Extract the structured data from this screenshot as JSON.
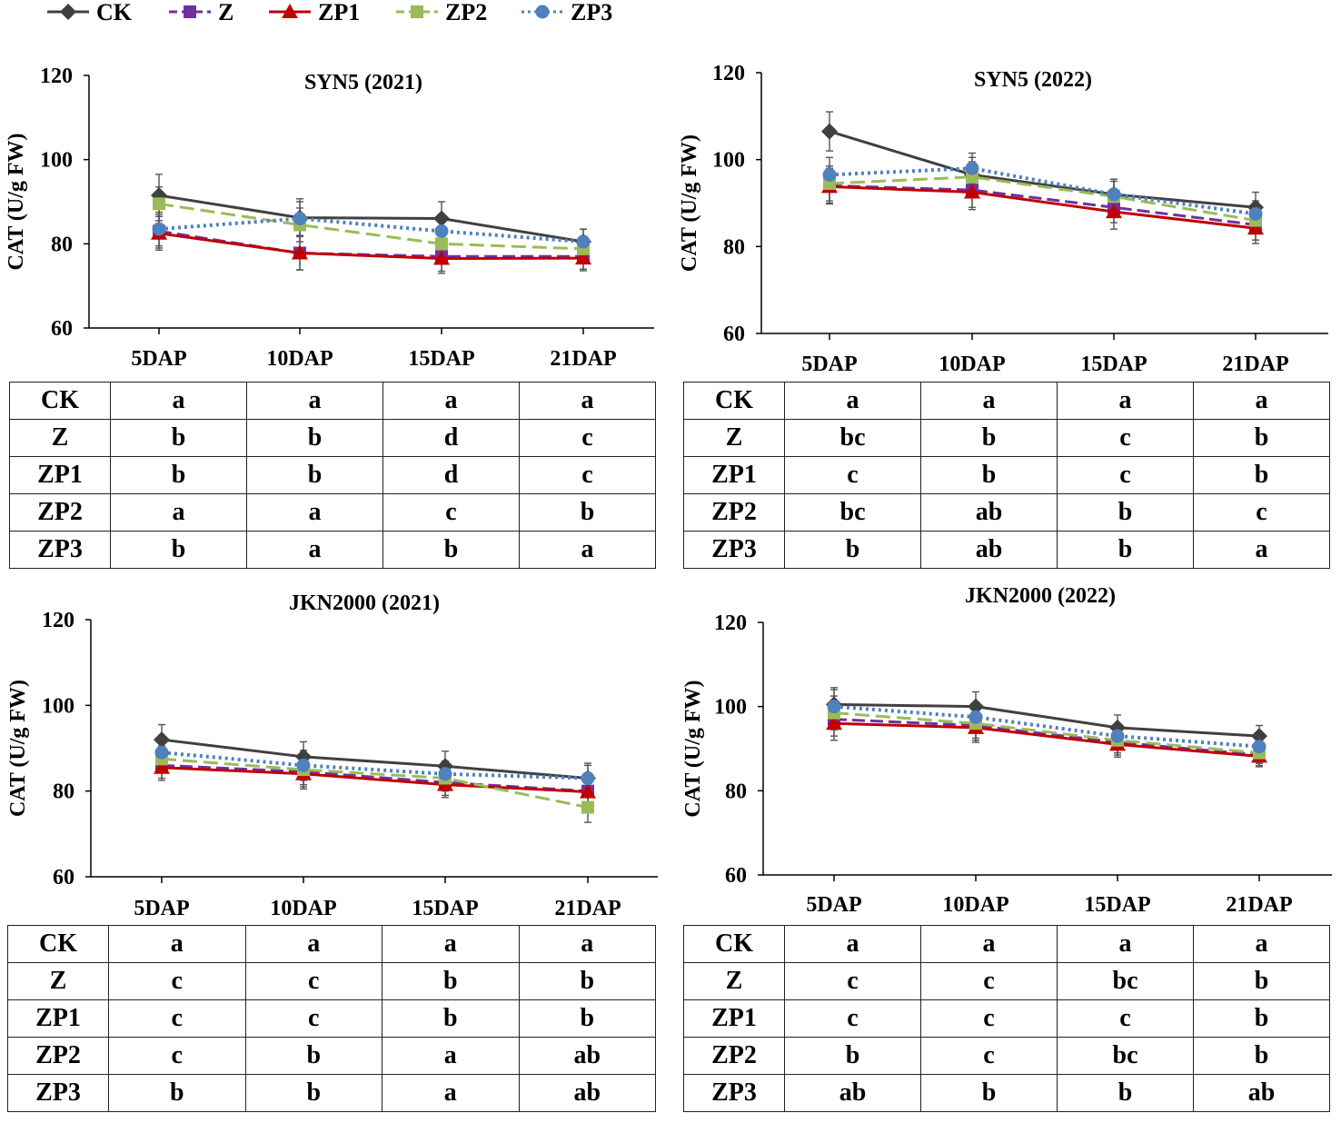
{
  "legend": [
    {
      "name": "CK",
      "color": "#404040",
      "dash": "solid",
      "marker": "diamond"
    },
    {
      "name": "Z",
      "color": "#7030A0",
      "dash": "longdash",
      "marker": "square"
    },
    {
      "name": "ZP1",
      "color": "#C00000",
      "dash": "solid",
      "marker": "triangle"
    },
    {
      "name": "ZP2",
      "color": "#9BBB59",
      "dash": "dash",
      "marker": "square"
    },
    {
      "name": "ZP3",
      "color": "#4F81BD",
      "dash": "dot",
      "marker": "circle"
    }
  ],
  "chart_data": [
    {
      "type": "line",
      "title": "SYN5 (2021)",
      "ylabel": "CAT (U/g FW)",
      "categories": [
        "5DAP",
        "10DAP",
        "15DAP",
        "21DAP"
      ],
      "ylim": [
        60,
        120
      ],
      "yticks": [
        "60",
        "80",
        "100",
        "120"
      ],
      "series": [
        {
          "name": "CK",
          "values": [
            91.5,
            86.2,
            86.0,
            80.5
          ],
          "errors": [
            5.0,
            4.5,
            4.0,
            3.0
          ]
        },
        {
          "name": "Z",
          "values": [
            83.0,
            77.8,
            77.0,
            77.0
          ],
          "errors": [
            4.0,
            4.0,
            3.5,
            3.0
          ]
        },
        {
          "name": "ZP1",
          "values": [
            82.5,
            77.8,
            76.5,
            76.6
          ],
          "errors": [
            4.0,
            4.0,
            3.5,
            3.0
          ]
        },
        {
          "name": "ZP2",
          "values": [
            89.5,
            84.5,
            80.0,
            78.8
          ],
          "errors": [
            4.0,
            4.0,
            3.5,
            3.0
          ]
        },
        {
          "name": "ZP3",
          "values": [
            83.5,
            86.0,
            83.0,
            80.5
          ],
          "errors": [
            4.0,
            4.0,
            3.5,
            3.0
          ]
        }
      ],
      "letters": {
        "headers": [
          "5DAP",
          "10DAP",
          "15DAP",
          "21DAP"
        ],
        "rows": [
          {
            "label": "CK",
            "values": [
              "a",
              "a",
              "a",
              "a"
            ]
          },
          {
            "label": "Z",
            "values": [
              "b",
              "b",
              "d",
              "c"
            ]
          },
          {
            "label": "ZP1",
            "values": [
              "b",
              "b",
              "d",
              "c"
            ]
          },
          {
            "label": "ZP2",
            "values": [
              "a",
              "a",
              "c",
              "b"
            ]
          },
          {
            "label": "ZP3",
            "values": [
              "b",
              "a",
              "b",
              "a"
            ]
          }
        ]
      }
    },
    {
      "type": "line",
      "title": "SYN5 (2022)",
      "ylabel": "CAT (U/g FW)",
      "categories": [
        "5DAP",
        "10DAP",
        "15DAP",
        "21DAP"
      ],
      "ylim": [
        60,
        120
      ],
      "yticks": [
        "60",
        "80",
        "100",
        "120"
      ],
      "series": [
        {
          "name": "CK",
          "values": [
            106.5,
            96.5,
            92.0,
            89.0
          ],
          "errors": [
            4.5,
            4.0,
            3.5,
            3.5
          ]
        },
        {
          "name": "Z",
          "values": [
            94.0,
            93.0,
            89.0,
            85.0
          ],
          "errors": [
            4.0,
            4.0,
            3.5,
            3.5
          ]
        },
        {
          "name": "ZP1",
          "values": [
            93.8,
            92.5,
            88.0,
            84.2
          ],
          "errors": [
            4.0,
            4.0,
            4.0,
            3.5
          ]
        },
        {
          "name": "ZP2",
          "values": [
            94.5,
            96.0,
            91.5,
            86.0
          ],
          "errors": [
            4.0,
            3.5,
            3.5,
            3.0
          ]
        },
        {
          "name": "ZP3",
          "values": [
            96.5,
            98.0,
            92.0,
            87.5
          ],
          "errors": [
            4.0,
            3.5,
            3.5,
            3.0
          ]
        }
      ],
      "letters": {
        "headers": [
          "5DAP",
          "10DAP",
          "15DAP",
          "21DAP"
        ],
        "rows": [
          {
            "label": "CK",
            "values": [
              "a",
              "a",
              "a",
              "a"
            ]
          },
          {
            "label": "Z",
            "values": [
              "bc",
              "b",
              "c",
              "b"
            ]
          },
          {
            "label": "ZP1",
            "values": [
              "c",
              "b",
              "c",
              "b"
            ]
          },
          {
            "label": "ZP2",
            "values": [
              "bc",
              "ab",
              "b",
              "c"
            ]
          },
          {
            "label": "ZP3",
            "values": [
              "b",
              "ab",
              "b",
              "a"
            ]
          }
        ]
      }
    },
    {
      "type": "line",
      "title": "JKN2000 (2021)",
      "ylabel": "CAT (U/g FW)",
      "categories": [
        "5DAP",
        "10DAP",
        "15DAP",
        "21DAP"
      ],
      "ylim": [
        60,
        120
      ],
      "yticks": [
        "60",
        "80",
        "100",
        "120"
      ],
      "series": [
        {
          "name": "CK",
          "values": [
            92.0,
            88.0,
            85.8,
            83.0
          ],
          "errors": [
            3.5,
            3.5,
            3.5,
            3.5
          ]
        },
        {
          "name": "Z",
          "values": [
            86.0,
            84.5,
            82.0,
            80.0
          ],
          "errors": [
            3.0,
            3.5,
            3.0,
            3.0
          ]
        },
        {
          "name": "ZP1",
          "values": [
            85.5,
            84.0,
            81.5,
            79.8
          ],
          "errors": [
            3.0,
            3.5,
            3.0,
            3.0
          ]
        },
        {
          "name": "ZP2",
          "values": [
            87.5,
            85.0,
            83.0,
            76.2
          ],
          "errors": [
            3.0,
            3.5,
            3.0,
            3.5
          ]
        },
        {
          "name": "ZP3",
          "values": [
            89.0,
            86.0,
            84.0,
            83.0
          ],
          "errors": [
            3.0,
            3.5,
            3.0,
            3.0
          ]
        }
      ],
      "letters": {
        "headers": [
          "5DAP",
          "10DAP",
          "15DAP",
          "21DAP"
        ],
        "rows": [
          {
            "label": "CK",
            "values": [
              "a",
              "a",
              "a",
              "a"
            ]
          },
          {
            "label": "Z",
            "values": [
              "c",
              "c",
              "b",
              "b"
            ]
          },
          {
            "label": "ZP1",
            "values": [
              "c",
              "c",
              "b",
              "b"
            ]
          },
          {
            "label": "ZP2",
            "values": [
              "c",
              "b",
              "a",
              "ab"
            ]
          },
          {
            "label": "ZP3",
            "values": [
              "b",
              "b",
              "a",
              "ab"
            ]
          }
        ]
      }
    },
    {
      "type": "line",
      "title": "JKN2000 (2022)",
      "ylabel": "CAT (U/g FW)",
      "categories": [
        "5DAP",
        "10DAP",
        "15DAP",
        "21DAP"
      ],
      "ylim": [
        60,
        120
      ],
      "yticks": [
        "60",
        "80",
        "100",
        "120"
      ],
      "series": [
        {
          "name": "CK",
          "values": [
            100.5,
            100.0,
            95.0,
            93.0
          ],
          "errors": [
            4.0,
            3.5,
            3.0,
            2.5
          ]
        },
        {
          "name": "Z",
          "values": [
            97.0,
            95.5,
            91.5,
            88.5
          ],
          "errors": [
            4.0,
            3.5,
            3.0,
            2.5
          ]
        },
        {
          "name": "ZP1",
          "values": [
            96.0,
            95.0,
            91.0,
            88.2
          ],
          "errors": [
            4.0,
            3.5,
            3.0,
            2.5
          ]
        },
        {
          "name": "ZP2",
          "values": [
            98.5,
            96.0,
            92.0,
            89.0
          ],
          "errors": [
            4.0,
            3.5,
            3.0,
            2.5
          ]
        },
        {
          "name": "ZP3",
          "values": [
            100.0,
            97.5,
            93.0,
            90.5
          ],
          "errors": [
            4.0,
            3.5,
            3.0,
            2.5
          ]
        }
      ],
      "letters": {
        "headers": [
          "5DAP",
          "10DAP",
          "15DAP",
          "21DAP"
        ],
        "rows": [
          {
            "label": "CK",
            "values": [
              "a",
              "a",
              "a",
              "a"
            ]
          },
          {
            "label": "Z",
            "values": [
              "c",
              "c",
              "bc",
              "b"
            ]
          },
          {
            "label": "ZP1",
            "values": [
              "c",
              "c",
              "c",
              "b"
            ]
          },
          {
            "label": "ZP2",
            "values": [
              "b",
              "c",
              "bc",
              "b"
            ]
          },
          {
            "label": "ZP3",
            "values": [
              "ab",
              "b",
              "b",
              "ab"
            ]
          }
        ]
      }
    }
  ]
}
